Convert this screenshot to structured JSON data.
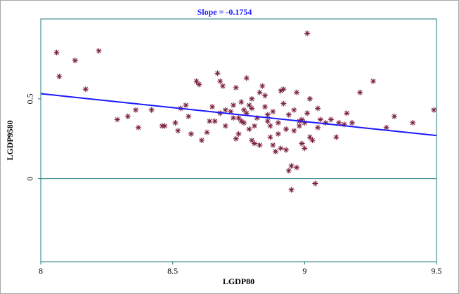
{
  "chart_data": {
    "type": "scatter",
    "title": "Slope = -0.1754",
    "xlabel": "LGDP80",
    "ylabel": "LGDP9580",
    "xlim": [
      8,
      9.5
    ],
    "ylim": [
      -0.52,
      1.0
    ],
    "x_ticks": [
      "8",
      "8.5",
      "9",
      "9.5"
    ],
    "y_ticks": [
      "0.5",
      "0"
    ],
    "grid": false,
    "marker": "asterisk",
    "colors": {
      "points": "#7a1f3d",
      "fit_line": "#1a1aff",
      "zero_line": "#1f7a7a",
      "frame": "#1f7a7a"
    },
    "fit_line": {
      "slope": -0.1754,
      "x": [
        8,
        9.5
      ],
      "y": [
        0.532,
        0.27
      ]
    },
    "points": [
      {
        "x": 8.06,
        "y": 0.79
      },
      {
        "x": 8.07,
        "y": 0.64
      },
      {
        "x": 8.13,
        "y": 0.74
      },
      {
        "x": 8.17,
        "y": 0.56
      },
      {
        "x": 8.22,
        "y": 0.8
      },
      {
        "x": 8.29,
        "y": 0.37
      },
      {
        "x": 8.33,
        "y": 0.39
      },
      {
        "x": 8.36,
        "y": 0.43
      },
      {
        "x": 8.37,
        "y": 0.32
      },
      {
        "x": 8.42,
        "y": 0.43
      },
      {
        "x": 8.46,
        "y": 0.33
      },
      {
        "x": 8.47,
        "y": 0.33
      },
      {
        "x": 8.51,
        "y": 0.35
      },
      {
        "x": 8.52,
        "y": 0.3
      },
      {
        "x": 8.53,
        "y": 0.44
      },
      {
        "x": 8.55,
        "y": 0.46
      },
      {
        "x": 8.56,
        "y": 0.39
      },
      {
        "x": 8.57,
        "y": 0.28
      },
      {
        "x": 8.59,
        "y": 0.61
      },
      {
        "x": 8.6,
        "y": 0.59
      },
      {
        "x": 8.61,
        "y": 0.24
      },
      {
        "x": 8.63,
        "y": 0.29
      },
      {
        "x": 8.64,
        "y": 0.36
      },
      {
        "x": 8.65,
        "y": 0.45
      },
      {
        "x": 8.66,
        "y": 0.36
      },
      {
        "x": 8.67,
        "y": 0.66
      },
      {
        "x": 8.68,
        "y": 0.61
      },
      {
        "x": 8.68,
        "y": 0.41
      },
      {
        "x": 8.69,
        "y": 0.58
      },
      {
        "x": 8.7,
        "y": 0.43
      },
      {
        "x": 8.7,
        "y": 0.33
      },
      {
        "x": 8.72,
        "y": 0.42
      },
      {
        "x": 8.73,
        "y": 0.46
      },
      {
        "x": 8.73,
        "y": 0.38
      },
      {
        "x": 8.74,
        "y": 0.25
      },
      {
        "x": 8.74,
        "y": 0.57
      },
      {
        "x": 8.75,
        "y": 0.28
      },
      {
        "x": 8.75,
        "y": 0.38
      },
      {
        "x": 8.76,
        "y": 0.48
      },
      {
        "x": 8.76,
        "y": 0.36
      },
      {
        "x": 8.77,
        "y": 0.35
      },
      {
        "x": 8.77,
        "y": 0.43
      },
      {
        "x": 8.78,
        "y": 0.41
      },
      {
        "x": 8.78,
        "y": 0.63
      },
      {
        "x": 8.79,
        "y": 0.46
      },
      {
        "x": 8.79,
        "y": 0.31
      },
      {
        "x": 8.8,
        "y": 0.24
      },
      {
        "x": 8.8,
        "y": 0.44
      },
      {
        "x": 8.8,
        "y": 0.5
      },
      {
        "x": 8.81,
        "y": 0.22
      },
      {
        "x": 8.81,
        "y": 0.33
      },
      {
        "x": 8.82,
        "y": 0.38
      },
      {
        "x": 8.83,
        "y": 0.21
      },
      {
        "x": 8.83,
        "y": 0.54
      },
      {
        "x": 8.84,
        "y": 0.58
      },
      {
        "x": 8.85,
        "y": 0.52
      },
      {
        "x": 8.85,
        "y": 0.45
      },
      {
        "x": 8.86,
        "y": 0.4
      },
      {
        "x": 8.86,
        "y": 0.36
      },
      {
        "x": 8.87,
        "y": 0.26
      },
      {
        "x": 8.87,
        "y": 0.33
      },
      {
        "x": 8.88,
        "y": 0.21
      },
      {
        "x": 8.88,
        "y": 0.42
      },
      {
        "x": 8.89,
        "y": 0.17
      },
      {
        "x": 8.9,
        "y": 0.35
      },
      {
        "x": 8.9,
        "y": 0.28
      },
      {
        "x": 8.91,
        "y": 0.19
      },
      {
        "x": 8.91,
        "y": 0.55
      },
      {
        "x": 8.92,
        "y": 0.47
      },
      {
        "x": 8.92,
        "y": 0.56
      },
      {
        "x": 8.93,
        "y": 0.31
      },
      {
        "x": 8.93,
        "y": 0.18
      },
      {
        "x": 8.94,
        "y": 0.05
      },
      {
        "x": 8.94,
        "y": 0.4
      },
      {
        "x": 8.95,
        "y": -0.07
      },
      {
        "x": 8.95,
        "y": 0.08
      },
      {
        "x": 8.96,
        "y": 0.43
      },
      {
        "x": 8.96,
        "y": 0.3
      },
      {
        "x": 8.97,
        "y": 0.54
      },
      {
        "x": 8.97,
        "y": 0.07
      },
      {
        "x": 8.98,
        "y": 0.36
      },
      {
        "x": 8.98,
        "y": 0.33
      },
      {
        "x": 8.99,
        "y": 0.37
      },
      {
        "x": 8.99,
        "y": 0.22
      },
      {
        "x": 9.0,
        "y": 0.19
      },
      {
        "x": 9.0,
        "y": 0.35
      },
      {
        "x": 9.01,
        "y": 0.41
      },
      {
        "x": 9.01,
        "y": 0.91
      },
      {
        "x": 9.02,
        "y": 0.5
      },
      {
        "x": 9.02,
        "y": 0.26
      },
      {
        "x": 9.03,
        "y": 0.24
      },
      {
        "x": 9.04,
        "y": -0.03
      },
      {
        "x": 9.05,
        "y": 0.44
      },
      {
        "x": 9.05,
        "y": 0.32
      },
      {
        "x": 9.06,
        "y": 0.37
      },
      {
        "x": 9.08,
        "y": 0.35
      },
      {
        "x": 9.1,
        "y": 0.37
      },
      {
        "x": 9.12,
        "y": 0.26
      },
      {
        "x": 9.13,
        "y": 0.35
      },
      {
        "x": 9.15,
        "y": 0.34
      },
      {
        "x": 9.16,
        "y": 0.41
      },
      {
        "x": 9.18,
        "y": 0.35
      },
      {
        "x": 9.21,
        "y": 0.54
      },
      {
        "x": 9.26,
        "y": 0.61
      },
      {
        "x": 9.31,
        "y": 0.32
      },
      {
        "x": 9.34,
        "y": 0.39
      },
      {
        "x": 9.41,
        "y": 0.35
      },
      {
        "x": 9.49,
        "y": 0.43
      }
    ]
  }
}
